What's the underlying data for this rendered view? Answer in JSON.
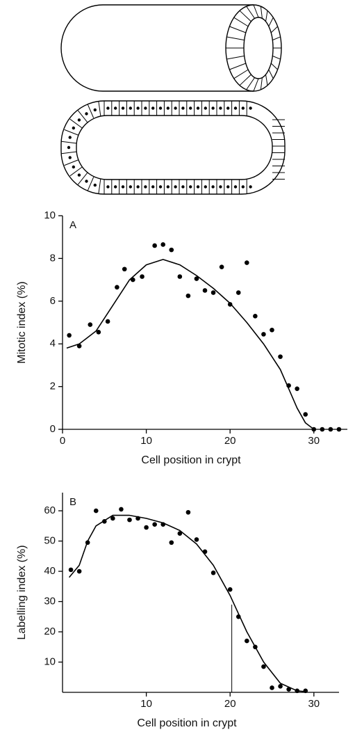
{
  "chart_data": [
    {
      "type": "scatter",
      "panel_label": "A",
      "xlabel": "Cell position in crypt",
      "ylabel": "Mitotic index (%)",
      "xlim": [
        0,
        34
      ],
      "ylim": [
        0,
        10
      ],
      "xticks": [
        0,
        10,
        20,
        30
      ],
      "yticks": [
        0,
        2,
        4,
        6,
        8,
        10
      ],
      "color": "#000000",
      "series": [
        {
          "style": "points",
          "x": [
            0.8,
            2,
            3.3,
            4.3,
            5.4,
            6.5,
            7.4,
            8.4,
            9.5,
            11,
            12,
            13,
            14,
            15,
            16,
            17,
            18,
            19,
            20,
            21,
            22,
            23,
            24,
            25,
            26,
            27,
            28,
            29,
            30,
            31,
            32,
            33
          ],
          "values": [
            4.4,
            3.9,
            4.9,
            4.55,
            5.05,
            6.65,
            7.5,
            7.0,
            7.15,
            8.6,
            8.65,
            8.4,
            7.15,
            6.25,
            7.05,
            6.5,
            6.4,
            7.6,
            5.85,
            6.4,
            7.8,
            5.3,
            4.45,
            4.65,
            3.4,
            2.05,
            1.9,
            0.7,
            0,
            0,
            0,
            0
          ]
        },
        {
          "style": "line",
          "x": [
            0.5,
            2,
            4,
            6,
            8,
            10,
            12,
            14,
            16,
            18,
            20,
            22,
            24,
            26,
            27,
            28,
            29,
            30
          ],
          "values": [
            3.8,
            4.0,
            4.6,
            5.8,
            7.0,
            7.7,
            7.95,
            7.7,
            7.2,
            6.6,
            5.9,
            5.0,
            4.0,
            2.8,
            1.9,
            1.0,
            0.3,
            0
          ]
        }
      ]
    },
    {
      "type": "scatter",
      "panel_label": "B",
      "xlabel": "Cell position in crypt",
      "ylabel": "Labelling index (%)",
      "xlim": [
        0,
        33
      ],
      "ylim": [
        0,
        66
      ],
      "xticks": [
        10,
        20,
        30
      ],
      "yticks": [
        10,
        20,
        30,
        40,
        50,
        60
      ],
      "color": "#000000",
      "vline": {
        "x": 20.2,
        "top": 29
      },
      "series": [
        {
          "style": "points",
          "x": [
            1,
            2,
            3,
            4,
            5,
            6,
            7,
            8,
            9,
            10,
            11,
            12,
            13,
            14,
            15,
            16,
            17,
            18,
            20,
            21,
            22,
            23,
            24,
            25,
            26,
            27,
            28,
            29
          ],
          "values": [
            40.5,
            40,
            49.5,
            60,
            56.5,
            57.5,
            60.5,
            57,
            57.5,
            54.5,
            55.5,
            55.5,
            49.5,
            52.5,
            59.5,
            50.5,
            46.5,
            39.5,
            34,
            25,
            17,
            15,
            8.5,
            1.5,
            2,
            1,
            0.5,
            0.5
          ]
        },
        {
          "style": "line",
          "x": [
            0.8,
            2,
            3,
            4,
            6,
            8,
            10,
            12,
            14,
            16,
            18,
            20,
            22,
            24,
            26,
            28,
            29
          ],
          "values": [
            38,
            42,
            50,
            55,
            58.5,
            58.5,
            57.5,
            56,
            53.5,
            49,
            42,
            32,
            20,
            10,
            3,
            0.5,
            0.2
          ]
        }
      ]
    }
  ]
}
